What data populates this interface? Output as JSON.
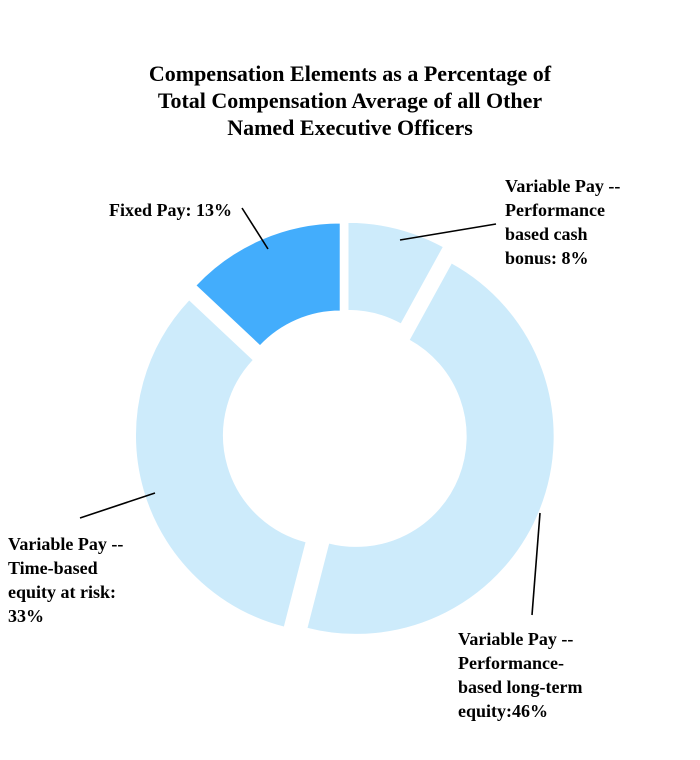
{
  "chart_data": {
    "type": "pie",
    "donut": true,
    "title": "Compensation Elements as a Percentage of Total Compensation Average of all Other Named Executive Officers",
    "title_lines": [
      "Compensation Elements as a Percentage of",
      "Total Compensation Average of all Other",
      "Named Executive Officers"
    ],
    "slices": [
      {
        "category": "Variable Pay -- Performance based cash bonus",
        "value": 8,
        "label_lines": [
          "Variable Pay --",
          "Performance",
          "based cash",
          "bonus: 8%"
        ],
        "color": "#CDEBFB"
      },
      {
        "category": "Variable Pay -- Performance-based long-term equity",
        "value": 46,
        "label_lines": [
          "Variable Pay --",
          "Performance-",
          "based long-term",
          "equity:46%"
        ],
        "color": "#CDEBFB"
      },
      {
        "category": "Variable Pay -- Time-based equity at risk",
        "value": 33,
        "label_lines": [
          "Variable Pay --",
          "Time-based",
          "equity at risk:",
          "33%"
        ],
        "color": "#CDEBFB"
      },
      {
        "category": "Fixed Pay",
        "value": 13,
        "label_lines": [
          "Fixed Pay: 13%"
        ],
        "color": "#43ADFC"
      }
    ],
    "start": "12 o'clock",
    "direction": "clockwise",
    "exploded": true,
    "legend": "none"
  }
}
